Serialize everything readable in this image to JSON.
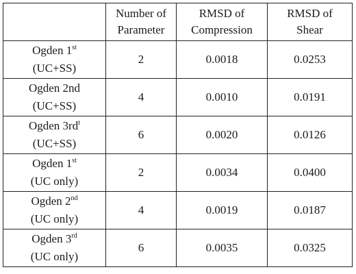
{
  "table": {
    "headers": [
      {
        "line1": "",
        "line2": ""
      },
      {
        "line1": "Number of",
        "line2": "Parameter"
      },
      {
        "line1": "RMSD of",
        "line2": "Compression"
      },
      {
        "line1": "RMSD of",
        "line2": "Shear"
      }
    ],
    "rows": [
      {
        "model": "Ogden 1",
        "sup": "st",
        "suffix": "",
        "condition": "(UC+SS)",
        "params": "2",
        "rmsd_compression": "0.0018",
        "rmsd_shear": "0.0253"
      },
      {
        "model": "Ogden 2nd",
        "sup": "",
        "suffix": "",
        "condition": "(UC+SS)",
        "params": "4",
        "rmsd_compression": "0.0010",
        "rmsd_shear": "0.0191"
      },
      {
        "model": "Ogden 3rd",
        "sup": "t",
        "suffix": "",
        "condition": "(UC+SS)",
        "params": "6",
        "rmsd_compression": "0.0020",
        "rmsd_shear": "0.0126"
      },
      {
        "model": "Ogden 1",
        "sup": "st",
        "suffix": "",
        "condition": "(UC only)",
        "params": "2",
        "rmsd_compression": "0.0034",
        "rmsd_shear": "0.0400"
      },
      {
        "model": "Ogden 2",
        "sup": "nd",
        "suffix": "",
        "condition": "(UC only)",
        "params": "4",
        "rmsd_compression": "0.0019",
        "rmsd_shear": "0.0187"
      },
      {
        "model": "Ogden 3",
        "sup": "rd",
        "suffix": "",
        "condition": "(UC only)",
        "params": "6",
        "rmsd_compression": "0.0035",
        "rmsd_shear": "0.0325"
      }
    ]
  }
}
